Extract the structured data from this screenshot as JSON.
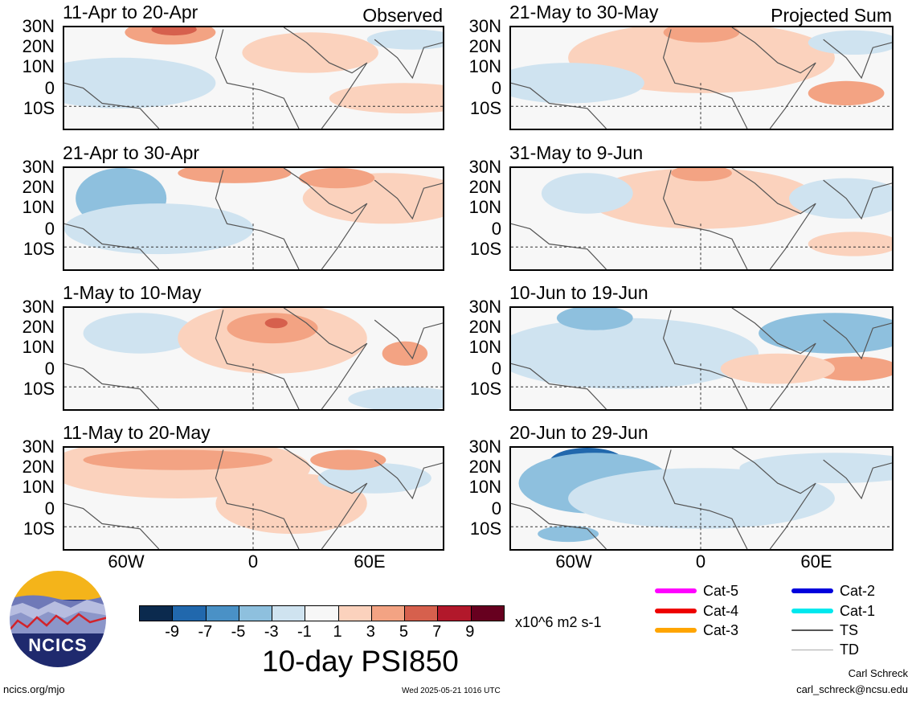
{
  "panels_left": [
    {
      "title": "11-Apr to 20-Apr",
      "corner": "Observed"
    },
    {
      "title": "21-Apr to 30-Apr",
      "corner": ""
    },
    {
      "title": "1-May to 10-May",
      "corner": ""
    },
    {
      "title": "11-May to 20-May",
      "corner": ""
    }
  ],
  "panels_right": [
    {
      "title": "21-May to 30-May",
      "corner": "Projected Sum"
    },
    {
      "title": "31-May to 9-Jun",
      "corner": ""
    },
    {
      "title": "10-Jun to 19-Jun",
      "corner": ""
    },
    {
      "title": "20-Jun to 29-Jun",
      "corner": ""
    }
  ],
  "lat_labels": [
    "30N",
    "20N",
    "10N",
    "0",
    "10S"
  ],
  "lon_labels": [
    "60W",
    "0",
    "60E"
  ],
  "colorbar": {
    "ticks": [
      "-9",
      "-7",
      "-5",
      "-3",
      "-1",
      "1",
      "3",
      "5",
      "7",
      "9"
    ],
    "colors": [
      "#0b2a4e",
      "#2168ad",
      "#4a91c6",
      "#8ec0de",
      "#cfe3f0",
      "#f7f7f7",
      "#fbd2bd",
      "#f3a383",
      "#d6604d",
      "#b2182b",
      "#67001f"
    ],
    "units": "x10^6 m2 s-1"
  },
  "main_title": "10-day PSI850",
  "logo": {
    "text": "NCICS"
  },
  "legend": [
    {
      "label": "Cat-5",
      "color": "#ff00ff"
    },
    {
      "label": "Cat-4",
      "color": "#ee0000"
    },
    {
      "label": "Cat-3",
      "color": "#ffa500"
    },
    {
      "label": "Cat-2",
      "color": "#0000dd"
    },
    {
      "label": "Cat-1",
      "color": "#00e8ee"
    },
    {
      "label": "TS",
      "color": "#555555"
    },
    {
      "label": "TD",
      "color": "#aaaaaa"
    }
  ],
  "footer": {
    "left": "ncics.org/mjo",
    "center": "Wed 2025-05-21 1016 UTC",
    "author": "Carl Schreck",
    "email": "carl_schreck@ncsu.edu"
  }
}
